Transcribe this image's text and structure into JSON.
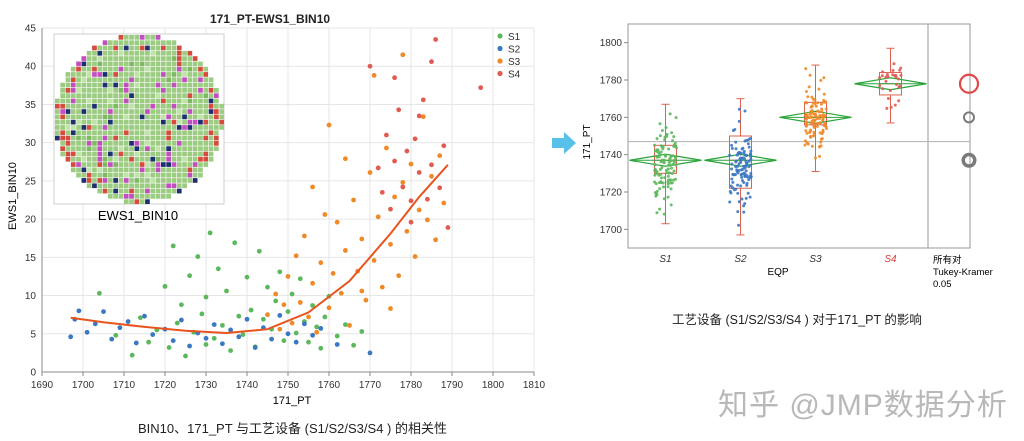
{
  "left_chart": {
    "title": "171_PT-EWS1_BIN10",
    "xlabel": "171_PT",
    "ylabel": "EWS1_BIN10",
    "caption": "BIN10、171_PT 与工艺设备 (S1/S2/S3/S4 ) 的相关性",
    "inset_label": "EWS1_BIN10"
  },
  "right_chart": {
    "ylabel": "171_PT",
    "xlabel": "EQP",
    "caption": "工艺设备 (S1/S2/S3/S4 ) 对于171_PT 的影响",
    "compare_label_1": "所有对",
    "compare_label_2": "Tukey-Kramer",
    "compare_label_3": "0.05"
  },
  "watermark": "知乎 @JMP数据分析",
  "colors": {
    "S1": "#5cb85c",
    "S2": "#3a78c2",
    "S3": "#f08a28",
    "S4": "#e15b52",
    "fit": "#e8541e",
    "mean_diamond": "#2aa43a",
    "box": "#e06050"
  },
  "chart_data": [
    {
      "type": "scatter",
      "title": "171_PT-EWS1_BIN10",
      "xlabel": "171_PT",
      "ylabel": "EWS1_BIN10",
      "xlim": [
        1690,
        1810
      ],
      "ylim": [
        0,
        45
      ],
      "xticks": [
        1690,
        1700,
        1710,
        1720,
        1730,
        1740,
        1750,
        1760,
        1770,
        1780,
        1790,
        1800,
        1810
      ],
      "yticks": [
        0,
        5,
        10,
        15,
        20,
        25,
        30,
        35,
        40,
        45
      ],
      "grid": true,
      "legend": "top-right",
      "series": [
        {
          "name": "S1",
          "points": [
            [
              1704,
              10.3
            ],
            [
              1708,
              4.8
            ],
            [
              1712,
              2.2
            ],
            [
              1714,
              7.1
            ],
            [
              1716,
              3.9
            ],
            [
              1718,
              5.5
            ],
            [
              1720,
              11.2
            ],
            [
              1721,
              3.2
            ],
            [
              1722,
              16.5
            ],
            [
              1723,
              6.4
            ],
            [
              1724,
              8.8
            ],
            [
              1725,
              2.1
            ],
            [
              1726,
              12.6
            ],
            [
              1727,
              5.2
            ],
            [
              1728,
              15.1
            ],
            [
              1729,
              7.6
            ],
            [
              1730,
              3.6
            ],
            [
              1730,
              9.8
            ],
            [
              1731,
              18.2
            ],
            [
              1732,
              4.4
            ],
            [
              1733,
              13.5
            ],
            [
              1734,
              6.1
            ],
            [
              1735,
              10.6
            ],
            [
              1736,
              2.8
            ],
            [
              1737,
              16.9
            ],
            [
              1738,
              7.3
            ],
            [
              1739,
              4.9
            ],
            [
              1740,
              12.4
            ],
            [
              1741,
              8.1
            ],
            [
              1742,
              3.3
            ],
            [
              1743,
              15.8
            ],
            [
              1744,
              6.9
            ],
            [
              1745,
              11.1
            ],
            [
              1746,
              5.6
            ],
            [
              1747,
              9.3
            ],
            [
              1748,
              13.1
            ],
            [
              1749,
              4.1
            ],
            [
              1750,
              7.9
            ],
            [
              1751,
              10.2
            ],
            [
              1752,
              5.1
            ],
            [
              1753,
              12.2
            ],
            [
              1754,
              6.6
            ],
            [
              1755,
              3.9
            ],
            [
              1756,
              8.7
            ],
            [
              1757,
              5.9
            ],
            [
              1758,
              3.1
            ],
            [
              1759,
              7.2
            ],
            [
              1760,
              9.9
            ],
            [
              1762,
              4.7
            ],
            [
              1764,
              6.2
            ],
            [
              1766,
              3.5
            ],
            [
              1768,
              5.3
            ]
          ]
        },
        {
          "name": "S2",
          "points": [
            [
              1697,
              4.6
            ],
            [
              1698,
              6.9
            ],
            [
              1699,
              8.0
            ],
            [
              1701,
              5.2
            ],
            [
              1703,
              6.3
            ],
            [
              1705,
              7.9
            ],
            [
              1707,
              4.3
            ],
            [
              1709,
              5.8
            ],
            [
              1711,
              6.6
            ],
            [
              1713,
              3.8
            ],
            [
              1715,
              7.3
            ],
            [
              1717,
              4.9
            ],
            [
              1720,
              5.6
            ],
            [
              1722,
              4.1
            ],
            [
              1724,
              6.8
            ],
            [
              1726,
              3.4
            ],
            [
              1728,
              5.1
            ],
            [
              1730,
              4.4
            ],
            [
              1732,
              6.2
            ],
            [
              1734,
              3.7
            ],
            [
              1736,
              5.5
            ],
            [
              1738,
              4.6
            ],
            [
              1740,
              6.9
            ],
            [
              1742,
              3.2
            ],
            [
              1744,
              5.8
            ],
            [
              1746,
              4.3
            ],
            [
              1748,
              7.4
            ],
            [
              1750,
              5.0
            ],
            [
              1752,
              3.9
            ],
            [
              1754,
              6.3
            ],
            [
              1756,
              4.8
            ],
            [
              1758,
              5.7
            ],
            [
              1762,
              3.6
            ],
            [
              1770,
              2.5
            ]
          ]
        },
        {
          "name": "S3",
          "points": [
            [
              1745,
              7.5
            ],
            [
              1747,
              10.2
            ],
            [
              1748,
              5.6
            ],
            [
              1749,
              8.8
            ],
            [
              1750,
              12.5
            ],
            [
              1751,
              6.4
            ],
            [
              1752,
              15.2
            ],
            [
              1753,
              9.1
            ],
            [
              1754,
              17.8
            ],
            [
              1755,
              7.2
            ],
            [
              1756,
              11.6
            ],
            [
              1757,
              5.2
            ],
            [
              1758,
              14.3
            ],
            [
              1759,
              20.6
            ],
            [
              1760,
              8.4
            ],
            [
              1761,
              12.9
            ],
            [
              1762,
              19.6
            ],
            [
              1763,
              10.3
            ],
            [
              1764,
              15.9
            ],
            [
              1765,
              6.1
            ],
            [
              1766,
              22.5
            ],
            [
              1767,
              13.2
            ],
            [
              1768,
              17.4
            ],
            [
              1769,
              9.4
            ],
            [
              1770,
              26.1
            ],
            [
              1771,
              14.6
            ],
            [
              1772,
              20.3
            ],
            [
              1773,
              11.1
            ],
            [
              1774,
              29.3
            ],
            [
              1775,
              16.7
            ],
            [
              1776,
              22.9
            ],
            [
              1777,
              12.6
            ],
            [
              1778,
              24.8
            ],
            [
              1779,
              18.4
            ],
            [
              1780,
              27.2
            ],
            [
              1781,
              15.1
            ],
            [
              1782,
              21.2
            ],
            [
              1783,
              33.4
            ],
            [
              1784,
              19.9
            ],
            [
              1785,
              25.6
            ],
            [
              1786,
              17.3
            ],
            [
              1787,
              28.3
            ],
            [
              1788,
              22.1
            ],
            [
              1778,
              41.5
            ],
            [
              1771,
              38.8
            ],
            [
              1760,
              32.3
            ],
            [
              1764,
              27.9
            ],
            [
              1756,
              24.2
            ],
            [
              1768,
              10.6
            ],
            [
              1775,
              8.3
            ]
          ]
        },
        {
          "name": "S4",
          "points": [
            [
              1770,
              40.0
            ],
            [
              1772,
              26.7
            ],
            [
              1774,
              31.0
            ],
            [
              1775,
              21.3
            ],
            [
              1776,
              27.6
            ],
            [
              1777,
              34.3
            ],
            [
              1778,
              24.2
            ],
            [
              1779,
              28.9
            ],
            [
              1780,
              19.6
            ],
            [
              1781,
              30.5
            ],
            [
              1782,
              26.1
            ],
            [
              1783,
              35.6
            ],
            [
              1784,
              22.6
            ],
            [
              1785,
              27.1
            ],
            [
              1786,
              43.5
            ],
            [
              1787,
              24.1
            ],
            [
              1788,
              29.6
            ],
            [
              1789,
              18.9
            ],
            [
              1785,
              40.6
            ],
            [
              1797,
              37.2
            ],
            [
              1773,
              23.5
            ],
            [
              1776,
              38.5
            ],
            [
              1782,
              33.5
            ],
            [
              1780,
              22.4
            ]
          ]
        }
      ],
      "fit_line": {
        "x": [
          1697,
          1705,
          1715,
          1725,
          1735,
          1745,
          1755,
          1765,
          1775,
          1782,
          1789
        ],
        "y": [
          7.1,
          6.5,
          5.9,
          5.4,
          5.1,
          5.6,
          7.8,
          11.9,
          18.1,
          22.9,
          27.1
        ]
      }
    },
    {
      "type": "scatter",
      "xlabel": "EQP",
      "ylabel": "171_PT",
      "categories": [
        "S1",
        "S2",
        "S3",
        "S4"
      ],
      "ylim": [
        1690,
        1810
      ],
      "yticks": [
        1700,
        1720,
        1740,
        1760,
        1780,
        1800
      ],
      "grand_mean": 1747,
      "series": [
        {
          "name": "S1",
          "min": 1703,
          "q1": 1730,
          "median": 1737,
          "q3": 1745,
          "max": 1767,
          "mean": 1737
        },
        {
          "name": "S2",
          "min": 1697,
          "q1": 1722,
          "median": 1737,
          "q3": 1750,
          "max": 1770,
          "mean": 1737
        },
        {
          "name": "S3",
          "min": 1731,
          "q1": 1756,
          "median": 1760,
          "q3": 1768,
          "max": 1788,
          "mean": 1760
        },
        {
          "name": "S4",
          "min": 1757,
          "q1": 1772,
          "median": 1778,
          "q3": 1784,
          "max": 1797,
          "mean": 1778
        }
      ],
      "comparison_circles": [
        {
          "name": "S4",
          "center": 1778,
          "highlight": true
        },
        {
          "name": "S3",
          "center": 1760,
          "highlight": false
        },
        {
          "name": "S1",
          "center": 1737,
          "highlight": false
        },
        {
          "name": "S2",
          "center": 1737,
          "highlight": false
        }
      ]
    }
  ]
}
